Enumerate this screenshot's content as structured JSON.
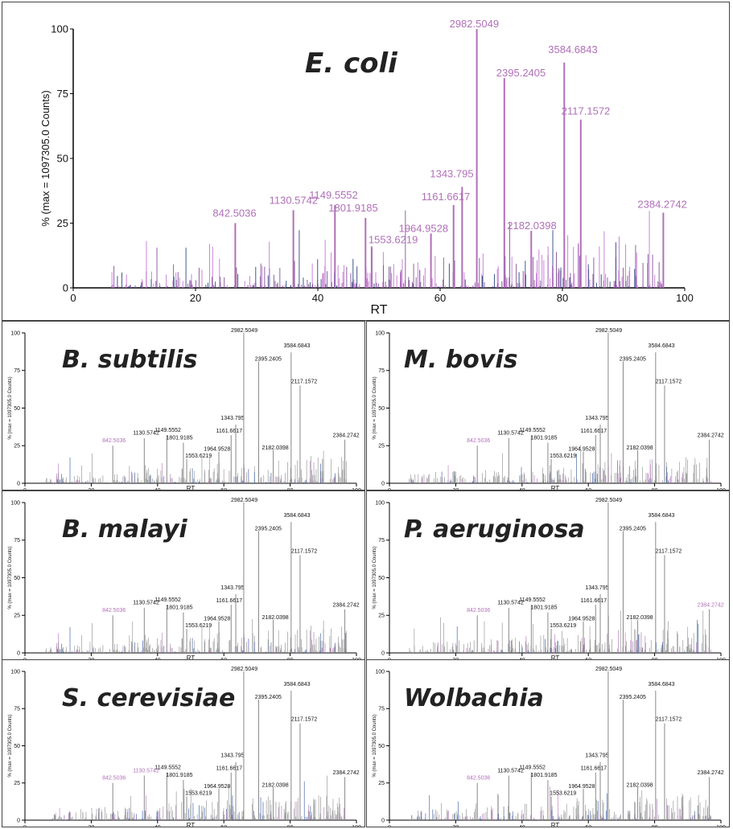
{
  "chart_data": [
    {
      "type": "bar",
      "title": "E. coli",
      "xlabel": "RT",
      "ylabel": "% (max = 1097305.0 Counts)",
      "xlim": [
        0,
        100
      ],
      "ylim": [
        0,
        100
      ],
      "xticks": [
        0,
        20,
        40,
        60,
        80,
        100
      ],
      "yticks": [
        0,
        25,
        50,
        75,
        100
      ],
      "colors": {
        "accent": "#b070b8",
        "label": "#b070b8",
        "noise_dark": "#1f3d7a"
      },
      "peaks": [
        {
          "rt": 26.5,
          "value": 25,
          "label": "842.5036"
        },
        {
          "rt": 36.0,
          "value": 30,
          "label": "1130.5742"
        },
        {
          "rt": 42.8,
          "value": 32,
          "label": "1149.5552"
        },
        {
          "rt": 47.8,
          "value": 27,
          "label": "1801.9185"
        },
        {
          "rt": 48.8,
          "value": 16,
          "label": "1553.6219"
        },
        {
          "rt": 58.5,
          "value": 21,
          "label": "1964.9528"
        },
        {
          "rt": 62.2,
          "value": 32,
          "label": "1161.6617"
        },
        {
          "rt": 63.6,
          "value": 39,
          "label": "1343.795"
        },
        {
          "rt": 66.0,
          "value": 100,
          "label": "2982.5049"
        },
        {
          "rt": 70.5,
          "value": 81,
          "label": "2395.2405"
        },
        {
          "rt": 74.9,
          "value": 22,
          "label": "2182.0398"
        },
        {
          "rt": 80.3,
          "value": 87,
          "label": "3584.6843"
        },
        {
          "rt": 83.0,
          "value": 65,
          "label": "2117.1572"
        },
        {
          "rt": 96.5,
          "value": 29,
          "label": "2384.2742"
        }
      ]
    },
    {
      "type": "bar",
      "title": "B. subtilis",
      "xlabel": "RT",
      "ylabel": "% (max = 1097305.0 Counts)",
      "xlim": [
        0,
        100
      ],
      "ylim": [
        0,
        100
      ],
      "xticks": [
        0,
        20,
        40,
        60,
        80,
        100
      ],
      "yticks": [
        0,
        25,
        50,
        75,
        100
      ],
      "colors": {
        "accent": "#888888",
        "label": "#111111",
        "noise_dark": "#2a4d9a"
      },
      "highlight_labels": [
        "842.5036"
      ],
      "peaks": [
        {
          "rt": 26.5,
          "value": 25,
          "label": "842.5036"
        },
        {
          "rt": 36.0,
          "value": 30,
          "label": "1130.5742"
        },
        {
          "rt": 42.8,
          "value": 32,
          "label": "1149.5552"
        },
        {
          "rt": 47.8,
          "value": 27,
          "label": "1801.9185"
        },
        {
          "rt": 48.8,
          "value": 16,
          "label": "1553.6219"
        },
        {
          "rt": 58.5,
          "value": 21,
          "label": "1964.9528"
        },
        {
          "rt": 62.2,
          "value": 32,
          "label": "1161.6617"
        },
        {
          "rt": 63.6,
          "value": 39,
          "label": "1343.795"
        },
        {
          "rt": 66.0,
          "value": 100,
          "label": "2982.5049"
        },
        {
          "rt": 70.5,
          "value": 81,
          "label": "2395.2405"
        },
        {
          "rt": 74.9,
          "value": 22,
          "label": "2182.0398"
        },
        {
          "rt": 80.3,
          "value": 87,
          "label": "3584.6843"
        },
        {
          "rt": 83.0,
          "value": 65,
          "label": "2117.1572"
        },
        {
          "rt": 96.5,
          "value": 29,
          "label": "2384.2742"
        }
      ]
    },
    {
      "type": "bar",
      "title": "M. bovis",
      "xlabel": "RT",
      "ylabel": "% (max = 1097305.0 Counts)",
      "xlim": [
        0,
        100
      ],
      "ylim": [
        0,
        100
      ],
      "xticks": [
        0,
        20,
        40,
        60,
        80,
        100
      ],
      "yticks": [
        0,
        25,
        50,
        75,
        100
      ],
      "colors": {
        "accent": "#888888",
        "label": "#111111",
        "noise_dark": "#2a4d9a"
      },
      "highlight_labels": [
        "842.5036"
      ],
      "peaks": [
        {
          "rt": 26.5,
          "value": 25,
          "label": "842.5036"
        },
        {
          "rt": 36.0,
          "value": 30,
          "label": "1130.5742"
        },
        {
          "rt": 42.8,
          "value": 32,
          "label": "1149.5552"
        },
        {
          "rt": 47.8,
          "value": 27,
          "label": "1801.9185"
        },
        {
          "rt": 48.8,
          "value": 16,
          "label": "1553.6219"
        },
        {
          "rt": 58.5,
          "value": 21,
          "label": "1964.9528"
        },
        {
          "rt": 62.2,
          "value": 32,
          "label": "1161.6617"
        },
        {
          "rt": 63.6,
          "value": 39,
          "label": "1343.795"
        },
        {
          "rt": 66.0,
          "value": 100,
          "label": "2982.5049"
        },
        {
          "rt": 70.5,
          "value": 81,
          "label": "2395.2405"
        },
        {
          "rt": 74.9,
          "value": 22,
          "label": "2182.0398"
        },
        {
          "rt": 80.3,
          "value": 87,
          "label": "3584.6843"
        },
        {
          "rt": 83.0,
          "value": 65,
          "label": "2117.1572"
        },
        {
          "rt": 96.5,
          "value": 29,
          "label": "2384.2742"
        }
      ]
    },
    {
      "type": "bar",
      "title": "B. malayi",
      "xlabel": "RT",
      "ylabel": "% (max = 1097305.0 Counts)",
      "xlim": [
        0,
        100
      ],
      "ylim": [
        0,
        100
      ],
      "xticks": [
        0,
        20,
        40,
        60,
        80,
        100
      ],
      "yticks": [
        0,
        25,
        50,
        75,
        100
      ],
      "colors": {
        "accent": "#888888",
        "label": "#111111",
        "noise_dark": "#2a4d9a"
      },
      "highlight_labels": [
        "842.5036"
      ],
      "peaks": [
        {
          "rt": 26.5,
          "value": 25,
          "label": "842.5036"
        },
        {
          "rt": 36.0,
          "value": 30,
          "label": "1130.5742"
        },
        {
          "rt": 42.8,
          "value": 32,
          "label": "1149.5552"
        },
        {
          "rt": 47.8,
          "value": 27,
          "label": "1801.9185"
        },
        {
          "rt": 48.8,
          "value": 16,
          "label": "1553.6219"
        },
        {
          "rt": 58.5,
          "value": 21,
          "label": "1964.9528"
        },
        {
          "rt": 62.2,
          "value": 32,
          "label": "1161.6617"
        },
        {
          "rt": 63.6,
          "value": 39,
          "label": "1343.795"
        },
        {
          "rt": 66.0,
          "value": 100,
          "label": "2982.5049"
        },
        {
          "rt": 70.5,
          "value": 81,
          "label": "2395.2405"
        },
        {
          "rt": 74.9,
          "value": 22,
          "label": "2182.0398"
        },
        {
          "rt": 80.3,
          "value": 87,
          "label": "3584.6843"
        },
        {
          "rt": 83.0,
          "value": 65,
          "label": "2117.1572"
        },
        {
          "rt": 96.5,
          "value": 29,
          "label": "2384.2742"
        }
      ]
    },
    {
      "type": "bar",
      "title": "P. aeruginosa",
      "xlabel": "RT",
      "ylabel": "% (max = 1097305.0 Counts)",
      "xlim": [
        0,
        100
      ],
      "ylim": [
        0,
        100
      ],
      "xticks": [
        0,
        20,
        40,
        60,
        80,
        100
      ],
      "yticks": [
        0,
        25,
        50,
        75,
        100
      ],
      "colors": {
        "accent": "#888888",
        "label": "#111111",
        "noise_dark": "#2a4d9a"
      },
      "highlight_labels": [
        "842.5036",
        "2384.2742"
      ],
      "peaks": [
        {
          "rt": 26.5,
          "value": 25,
          "label": "842.5036"
        },
        {
          "rt": 36.0,
          "value": 30,
          "label": "1130.5742"
        },
        {
          "rt": 42.8,
          "value": 32,
          "label": "1149.5552"
        },
        {
          "rt": 47.8,
          "value": 27,
          "label": "1801.9185"
        },
        {
          "rt": 48.8,
          "value": 16,
          "label": "1553.6219"
        },
        {
          "rt": 58.5,
          "value": 21,
          "label": "1964.9528"
        },
        {
          "rt": 62.2,
          "value": 32,
          "label": "1161.6617"
        },
        {
          "rt": 63.6,
          "value": 39,
          "label": "1343.795"
        },
        {
          "rt": 66.0,
          "value": 100,
          "label": "2982.5049"
        },
        {
          "rt": 70.5,
          "value": 81,
          "label": "2395.2405"
        },
        {
          "rt": 74.9,
          "value": 22,
          "label": "2182.0398"
        },
        {
          "rt": 80.3,
          "value": 87,
          "label": "3584.6843"
        },
        {
          "rt": 83.0,
          "value": 65,
          "label": "2117.1572"
        },
        {
          "rt": 96.5,
          "value": 29,
          "label": "2384.2742"
        }
      ]
    },
    {
      "type": "bar",
      "title": "S. cerevisiae",
      "xlabel": "RT",
      "ylabel": "% (max = 1097305.0 Counts)",
      "xlim": [
        0,
        100
      ],
      "ylim": [
        0,
        100
      ],
      "xticks": [
        0,
        20,
        40,
        60,
        80,
        100
      ],
      "yticks": [
        0,
        25,
        50,
        75,
        100
      ],
      "colors": {
        "accent": "#888888",
        "label": "#111111",
        "noise_dark": "#2a4d9a"
      },
      "highlight_labels": [
        "842.5036",
        "1130.5742"
      ],
      "peaks": [
        {
          "rt": 26.5,
          "value": 25,
          "label": "842.5036"
        },
        {
          "rt": 36.0,
          "value": 30,
          "label": "1130.5742"
        },
        {
          "rt": 42.8,
          "value": 32,
          "label": "1149.5552"
        },
        {
          "rt": 47.8,
          "value": 27,
          "label": "1801.9185"
        },
        {
          "rt": 48.8,
          "value": 16,
          "label": "1553.6219"
        },
        {
          "rt": 58.5,
          "value": 21,
          "label": "1964.9528"
        },
        {
          "rt": 62.2,
          "value": 32,
          "label": "1161.6617"
        },
        {
          "rt": 63.6,
          "value": 39,
          "label": "1343.795"
        },
        {
          "rt": 66.0,
          "value": 100,
          "label": "2982.5049"
        },
        {
          "rt": 70.5,
          "value": 81,
          "label": "2395.2405"
        },
        {
          "rt": 74.9,
          "value": 22,
          "label": "2182.0398"
        },
        {
          "rt": 80.3,
          "value": 87,
          "label": "3584.6843"
        },
        {
          "rt": 83.0,
          "value": 65,
          "label": "2117.1572"
        },
        {
          "rt": 96.5,
          "value": 29,
          "label": "2384.2742"
        }
      ]
    },
    {
      "type": "bar",
      "title": "Wolbachia",
      "xlabel": "RT",
      "ylabel": "% (max = 1097305.0 Counts)",
      "xlim": [
        0,
        100
      ],
      "ylim": [
        0,
        100
      ],
      "xticks": [
        0,
        20,
        40,
        60,
        80,
        100
      ],
      "yticks": [
        0,
        25,
        50,
        75,
        100
      ],
      "colors": {
        "accent": "#888888",
        "label": "#111111",
        "noise_dark": "#2a4d9a"
      },
      "highlight_labels": [
        "842.5036"
      ],
      "peaks": [
        {
          "rt": 26.5,
          "value": 25,
          "label": "842.5036"
        },
        {
          "rt": 36.0,
          "value": 30,
          "label": "1130.5742"
        },
        {
          "rt": 42.8,
          "value": 32,
          "label": "1149.5552"
        },
        {
          "rt": 47.8,
          "value": 27,
          "label": "1801.9185"
        },
        {
          "rt": 48.8,
          "value": 16,
          "label": "1553.6219"
        },
        {
          "rt": 58.5,
          "value": 21,
          "label": "1964.9528"
        },
        {
          "rt": 62.2,
          "value": 32,
          "label": "1161.6617"
        },
        {
          "rt": 63.6,
          "value": 39,
          "label": "1343.795"
        },
        {
          "rt": 66.0,
          "value": 100,
          "label": "2982.5049"
        },
        {
          "rt": 70.5,
          "value": 81,
          "label": "2395.2405"
        },
        {
          "rt": 74.9,
          "value": 22,
          "label": "2182.0398"
        },
        {
          "rt": 80.3,
          "value": 87,
          "label": "3584.6843"
        },
        {
          "rt": 83.0,
          "value": 65,
          "label": "2117.1572"
        },
        {
          "rt": 96.5,
          "value": 29,
          "label": "2384.2742"
        }
      ]
    }
  ]
}
